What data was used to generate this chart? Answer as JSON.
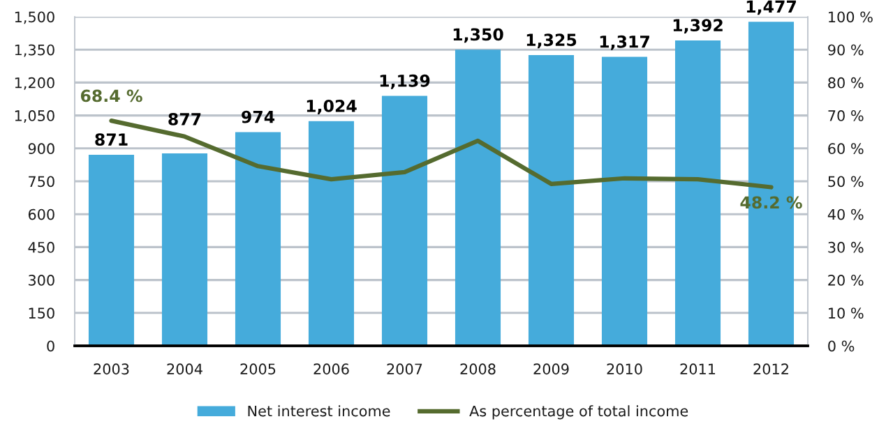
{
  "chart_data": {
    "type": "bar",
    "categories": [
      "2003",
      "2004",
      "2005",
      "2006",
      "2007",
      "2008",
      "2009",
      "2010",
      "2011",
      "2012"
    ],
    "series": [
      {
        "name": "Net interest income",
        "color": "#45abdb",
        "values": [
          871,
          877,
          974,
          1024,
          1139,
          1350,
          1325,
          1317,
          1392,
          1477
        ],
        "value_labels": [
          "871",
          "877",
          "974",
          "1,024",
          "1,139",
          "1,350",
          "1,325",
          "1,317",
          "1,392",
          "1,477"
        ]
      },
      {
        "name": "As percentage of total income",
        "type": "line",
        "axis": "y2",
        "color": "#556b2f",
        "values": [
          68.4,
          63.6,
          54.6,
          50.6,
          52.8,
          62.3,
          49.2,
          50.9,
          50.6,
          48.2
        ],
        "value_labels": [
          "68.4 %",
          null,
          null,
          null,
          null,
          null,
          null,
          null,
          null,
          "48.2 %"
        ]
      }
    ],
    "ylim": [
      0,
      1500
    ],
    "yticks": [
      0,
      150,
      300,
      450,
      600,
      750,
      900,
      {
        "value": 1050,
        "label": "1,050"
      },
      {
        "value": 1200,
        "label": "1,200"
      },
      {
        "value": 1350,
        "label": "1,350"
      },
      {
        "value": 1500,
        "label": "1,500"
      }
    ],
    "y2lim": [
      0,
      100
    ],
    "y2ticks": [
      {
        "value": 0,
        "label": "0 %"
      },
      {
        "value": 10,
        "label": "10 %"
      },
      {
        "value": 20,
        "label": "20 %"
      },
      {
        "value": 30,
        "label": "30 %"
      },
      {
        "value": 40,
        "label": "40 %"
      },
      {
        "value": 50,
        "label": "50 %"
      },
      {
        "value": 60,
        "label": "60 %"
      },
      {
        "value": 70,
        "label": "70 %"
      },
      {
        "value": 80,
        "label": "80 %"
      },
      {
        "value": 90,
        "label": "90 %"
      },
      {
        "value": 100,
        "label": "100 %"
      }
    ],
    "grid": "y",
    "legend": "bottom",
    "marker": "none",
    "line_style": "solid"
  }
}
